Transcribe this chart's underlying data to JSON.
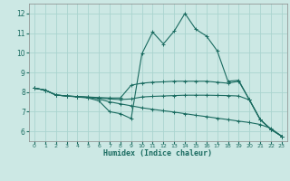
{
  "xlabel": "Humidex (Indice chaleur)",
  "bg_color": "#cce8e4",
  "grid_color": "#aad4cf",
  "line_color": "#1a6b60",
  "xlim": [
    -0.5,
    23.5
  ],
  "ylim": [
    5.5,
    12.5
  ],
  "xticks": [
    0,
    1,
    2,
    3,
    4,
    5,
    6,
    7,
    8,
    9,
    10,
    11,
    12,
    13,
    14,
    15,
    16,
    17,
    18,
    19,
    20,
    21,
    22,
    23
  ],
  "yticks": [
    6,
    7,
    8,
    9,
    10,
    11,
    12
  ],
  "lines": [
    {
      "x": [
        0,
        1,
        2,
        3,
        4,
        5,
        6,
        7,
        8,
        9,
        10,
        11,
        12,
        13,
        14,
        15,
        16,
        17,
        18,
        19,
        20,
        21,
        22,
        23
      ],
      "y": [
        8.2,
        8.1,
        7.85,
        7.8,
        7.75,
        7.7,
        7.55,
        7.0,
        6.9,
        6.65,
        9.95,
        11.05,
        10.45,
        11.1,
        12.0,
        11.2,
        10.85,
        10.1,
        8.55,
        8.6,
        7.6,
        6.6,
        6.1,
        5.75
      ]
    },
    {
      "x": [
        0,
        1,
        2,
        3,
        4,
        5,
        6,
        7,
        8,
        9,
        10,
        11,
        12,
        13,
        14,
        15,
        16,
        17,
        18,
        19,
        20,
        21,
        22,
        23
      ],
      "y": [
        8.2,
        8.1,
        7.85,
        7.8,
        7.77,
        7.75,
        7.72,
        7.7,
        7.7,
        8.35,
        8.45,
        8.5,
        8.52,
        8.55,
        8.55,
        8.55,
        8.55,
        8.5,
        8.45,
        8.55,
        7.6,
        6.6,
        6.1,
        5.75
      ]
    },
    {
      "x": [
        0,
        1,
        2,
        3,
        4,
        5,
        6,
        7,
        8,
        9,
        10,
        11,
        12,
        13,
        14,
        15,
        16,
        17,
        18,
        19,
        20,
        21,
        22,
        23
      ],
      "y": [
        8.2,
        8.1,
        7.85,
        7.8,
        7.77,
        7.74,
        7.7,
        7.65,
        7.62,
        7.65,
        7.75,
        7.78,
        7.8,
        7.82,
        7.84,
        7.84,
        7.84,
        7.83,
        7.82,
        7.8,
        7.6,
        6.6,
        6.1,
        5.75
      ]
    },
    {
      "x": [
        0,
        1,
        2,
        3,
        4,
        5,
        6,
        7,
        8,
        9,
        10,
        11,
        12,
        13,
        14,
        15,
        16,
        17,
        18,
        19,
        20,
        21,
        22,
        23
      ],
      "y": [
        8.2,
        8.1,
        7.85,
        7.8,
        7.77,
        7.72,
        7.65,
        7.5,
        7.4,
        7.3,
        7.2,
        7.12,
        7.05,
        6.98,
        6.9,
        6.82,
        6.75,
        6.67,
        6.6,
        6.52,
        6.45,
        6.35,
        6.15,
        5.75
      ]
    }
  ]
}
